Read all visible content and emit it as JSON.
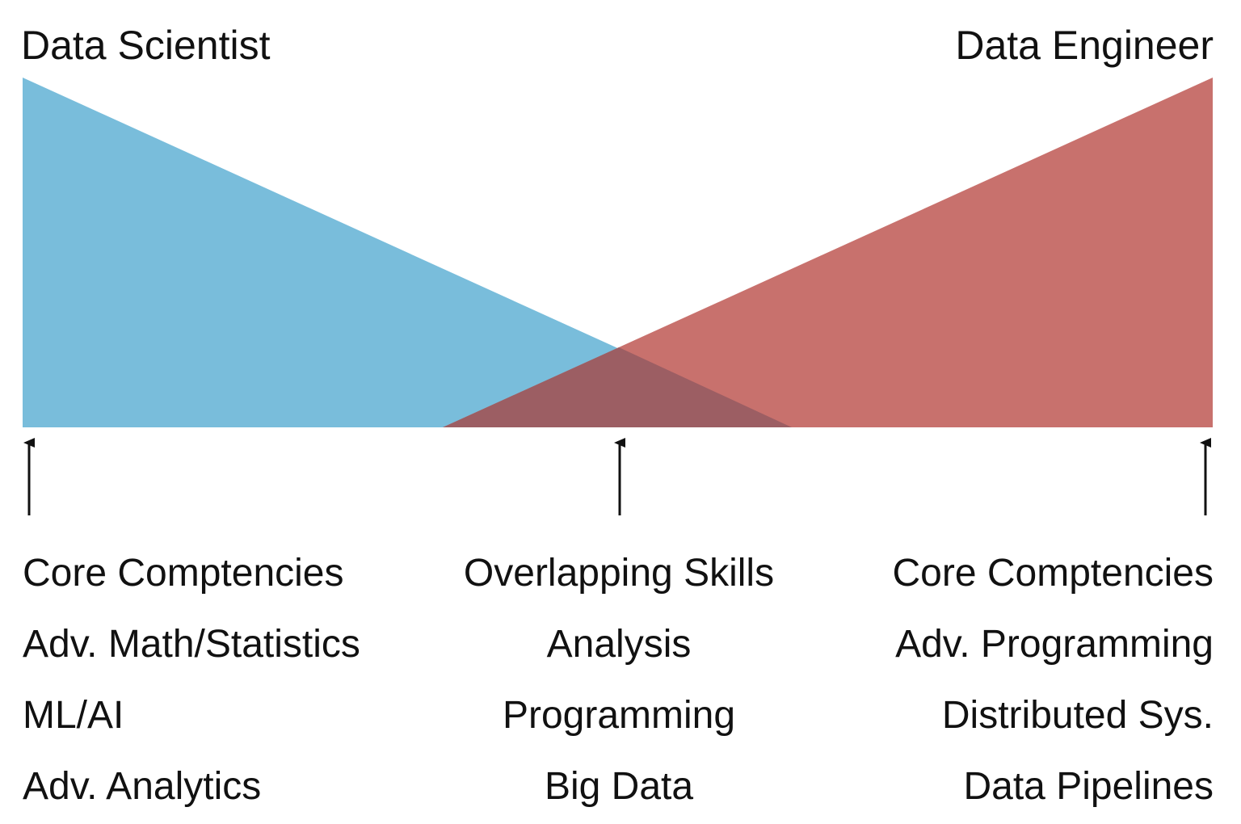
{
  "titles": {
    "left": "Data Scientist",
    "right": "Data Engineer"
  },
  "colors": {
    "scientist": "#79bddb",
    "engineer": "#c8716d",
    "overlap": "#9c5e63",
    "arrow": "#111111"
  },
  "columns": {
    "left": {
      "heading": "Core Comptencies",
      "items": [
        "Adv. Math/Statistics",
        "ML/AI",
        "Adv. Analytics"
      ]
    },
    "center": {
      "heading": "Overlapping Skills",
      "items": [
        "Analysis",
        "Programming",
        "Big Data"
      ]
    },
    "right": {
      "heading": "Core Comptencies",
      "items": [
        "Adv. Programming",
        "Distributed Sys.",
        "Data Pipelines"
      ]
    }
  }
}
